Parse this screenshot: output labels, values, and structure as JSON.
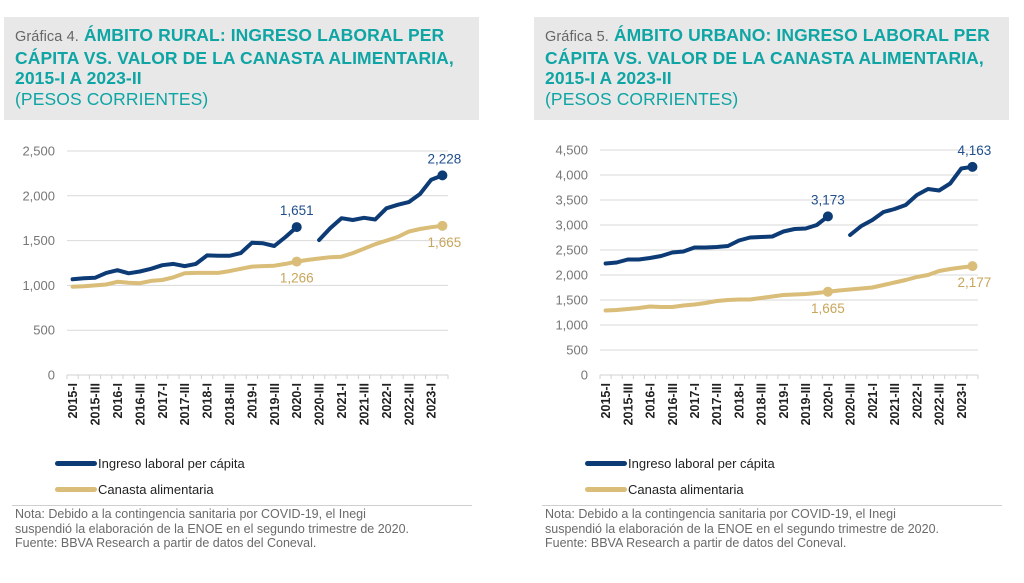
{
  "colors": {
    "income": "#0d3b75",
    "basket": "#d9bd78",
    "title": "#0ea5a4",
    "grid": "#d9d9d9"
  },
  "charts": [
    {
      "prefix": "Gráfica 4.",
      "title": "ÁMBITO RURAL: INGRESO LABORAL PER CÁPITA VS. VALOR DE LA CANASTA ALIMENTARIA, 2015-I A 2023-II",
      "unit": "(PESOS CORRIENTES)",
      "legend": [
        "Ingreso laboral per cápita",
        "Canasta alimentaria"
      ],
      "note": [
        "Nota: Debido a la contingencia sanitaria por COVID-19, el Inegi",
        "suspendió la elaboración de la ENOE en el segundo trimestre de 2020.",
        "Fuente: BBVA Research a partir de datos del Coneval."
      ]
    },
    {
      "prefix": "Gráfica 5.",
      "title": "ÁMBITO URBANO: INGRESO LABORAL PER CÁPITA VS. VALOR DE LA CANASTA ALIMENTARIA, 2015-I A 2023-II",
      "unit": "(PESOS CORRIENTES)",
      "legend": [
        "Ingreso laboral per cápita",
        "Canasta alimentaria"
      ],
      "note": [
        "Nota: Debido a la contingencia sanitaria por COVID-19, el Inegi",
        "suspendió la elaboración de la ENOE en el segundo trimestre de 2020.",
        "Fuente: BBVA Research a partir de datos del Coneval."
      ]
    }
  ],
  "chart_data": [
    {
      "type": "line",
      "title": "Gráfica 4. ÁMBITO RURAL: INGRESO LABORAL PER CÁPITA VS. VALOR DE LA CANASTA ALIMENTARIA, 2015-I A 2023-II (PESOS CORRIENTES)",
      "xlabel": "",
      "ylabel": "",
      "ylim": [
        0,
        2500
      ],
      "yticks": [
        0,
        500,
        1000,
        1500,
        2000,
        2500
      ],
      "ytick_labels": [
        "0",
        "500",
        "1,000",
        "1,500",
        "2,000",
        "2,500"
      ],
      "grid": true,
      "legend_position": "bottom",
      "x": [
        "2015-I",
        "2015-II",
        "2015-III",
        "2015-IV",
        "2016-I",
        "2016-II",
        "2016-III",
        "2016-IV",
        "2017-I",
        "2017-II",
        "2017-III",
        "2017-IV",
        "2018-I",
        "2018-II",
        "2018-III",
        "2018-IV",
        "2019-I",
        "2019-II",
        "2019-III",
        "2019-IV",
        "2020-I",
        "2020-II",
        "2020-III",
        "2020-IV",
        "2021-I",
        "2021-II",
        "2021-III",
        "2021-IV",
        "2022-I",
        "2022-II",
        "2022-III",
        "2022-IV",
        "2023-I",
        "2023-II"
      ],
      "xtick_labels": [
        "2015-I",
        "2015-III",
        "2016-I",
        "2016-III",
        "2017-I",
        "2017-III",
        "2018-I",
        "2018-III",
        "2019-I",
        "2019-III",
        "2020-I",
        "2020-III",
        "2021-I",
        "2021-III",
        "2022-I",
        "2022-III",
        "2023-I"
      ],
      "series": [
        {
          "name": "Ingreso laboral per cápita",
          "values": [
            1068,
            1080,
            1085,
            1140,
            1170,
            1135,
            1155,
            1185,
            1225,
            1240,
            1215,
            1240,
            1335,
            1330,
            1330,
            1360,
            1475,
            1470,
            1440,
            1540,
            1651,
            null,
            1507,
            1640,
            1750,
            1730,
            1755,
            1735,
            1860,
            1900,
            1930,
            2020,
            2180,
            2228
          ],
          "annotations": [
            {
              "index": 20,
              "label": "1,651"
            },
            {
              "index": 33,
              "label": "2,228"
            }
          ]
        },
        {
          "name": "Canasta alimentaria",
          "values": [
            985,
            990,
            1000,
            1010,
            1040,
            1030,
            1025,
            1050,
            1060,
            1090,
            1135,
            1140,
            1140,
            1140,
            1160,
            1185,
            1210,
            1215,
            1220,
            1240,
            1266,
            1285,
            1300,
            1315,
            1320,
            1360,
            1410,
            1460,
            1500,
            1540,
            1600,
            1630,
            1650,
            1665
          ],
          "annotations": [
            {
              "index": 20,
              "label": "1,266"
            },
            {
              "index": 33,
              "label": "1,665"
            }
          ]
        }
      ]
    },
    {
      "type": "line",
      "title": "Gráfica 5. ÁMBITO URBANO: INGRESO LABORAL PER CÁPITA VS. VALOR DE LA CANASTA ALIMENTARIA, 2015-I A 2023-II (PESOS CORRIENTES)",
      "xlabel": "",
      "ylabel": "",
      "ylim": [
        0,
        4500
      ],
      "yticks": [
        0,
        500,
        1000,
        1500,
        2000,
        2500,
        3000,
        3500,
        4000,
        4500
      ],
      "ytick_labels": [
        "0",
        "500",
        "1,000",
        "1,500",
        "2,000",
        "2,500",
        "3,000",
        "3,500",
        "4,000",
        "4,500"
      ],
      "grid": true,
      "legend_position": "bottom",
      "x": [
        "2015-I",
        "2015-II",
        "2015-III",
        "2015-IV",
        "2016-I",
        "2016-II",
        "2016-III",
        "2016-IV",
        "2017-I",
        "2017-II",
        "2017-III",
        "2017-IV",
        "2018-I",
        "2018-II",
        "2018-III",
        "2018-IV",
        "2019-I",
        "2019-II",
        "2019-III",
        "2019-IV",
        "2020-I",
        "2020-II",
        "2020-III",
        "2020-IV",
        "2021-I",
        "2021-II",
        "2021-III",
        "2021-IV",
        "2022-I",
        "2022-II",
        "2022-III",
        "2022-IV",
        "2023-I",
        "2023-II"
      ],
      "xtick_labels": [
        "2015-I",
        "2015-III",
        "2016-I",
        "2016-III",
        "2017-I",
        "2017-III",
        "2018-I",
        "2018-III",
        "2019-I",
        "2019-III",
        "2020-I",
        "2020-III",
        "2021-I",
        "2021-III",
        "2022-I",
        "2022-III",
        "2023-I"
      ],
      "series": [
        {
          "name": "Ingreso laboral per cápita",
          "values": [
            2230,
            2250,
            2310,
            2310,
            2340,
            2380,
            2450,
            2470,
            2550,
            2550,
            2560,
            2580,
            2690,
            2750,
            2760,
            2770,
            2870,
            2920,
            2930,
            3000,
            3173,
            null,
            2800,
            2980,
            3100,
            3260,
            3320,
            3400,
            3600,
            3720,
            3690,
            3830,
            4130,
            4163
          ],
          "annotations": [
            {
              "index": 20,
              "label": "3,173"
            },
            {
              "index": 33,
              "label": "4,163"
            }
          ]
        },
        {
          "name": "Canasta alimentaria",
          "values": [
            1290,
            1300,
            1320,
            1340,
            1370,
            1360,
            1360,
            1390,
            1410,
            1440,
            1480,
            1500,
            1510,
            1510,
            1540,
            1570,
            1600,
            1610,
            1620,
            1640,
            1665,
            1690,
            1710,
            1730,
            1750,
            1800,
            1850,
            1900,
            1960,
            2000,
            2080,
            2120,
            2150,
            2177
          ],
          "annotations": [
            {
              "index": 20,
              "label": "1,665"
            },
            {
              "index": 33,
              "label": "2,177"
            }
          ]
        }
      ]
    }
  ]
}
